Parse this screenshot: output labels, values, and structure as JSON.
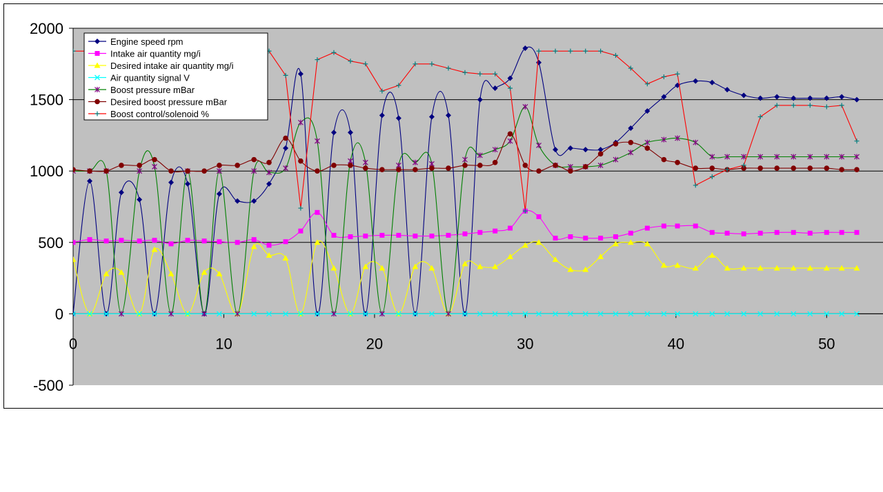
{
  "chart_data": {
    "type": "line",
    "title": "",
    "xlabel": "",
    "ylabel": "",
    "xlim": [
      0,
      52
    ],
    "ylim": [
      -500,
      2000
    ],
    "x_ticks": [
      "0",
      "10",
      "20",
      "30",
      "40",
      "50"
    ],
    "y_ticks": [
      "2000",
      "1500",
      "1000",
      "500",
      "0",
      "-500"
    ],
    "grid": "horizontal",
    "plot_background": "#c0c0c0",
    "legend_position": "top-left",
    "x": [
      0,
      1.1,
      2.2,
      3.2,
      4.4,
      5.4,
      6.5,
      7.6,
      8.7,
      9.7,
      10.9,
      12,
      13,
      14.1,
      15.1,
      16.2,
      17.3,
      18.4,
      19.4,
      20.5,
      21.6,
      22.7,
      23.8,
      24.9,
      26,
      27,
      28,
      29,
      30,
      30.9,
      32,
      33,
      34,
      35,
      36,
      37,
      38.1,
      39.2,
      40.1,
      41.3,
      42.4,
      43.4,
      44.5,
      45.6,
      46.7,
      47.8,
      48.9,
      50,
      51,
      52
    ],
    "series": [
      {
        "name": "Engine speed rpm",
        "color": "#000080",
        "marker": "diamond",
        "values": [
          0,
          930,
          0,
          850,
          800,
          0,
          920,
          910,
          0,
          840,
          790,
          790,
          910,
          1160,
          1680,
          0,
          1270,
          1270,
          0,
          1390,
          1370,
          0,
          1380,
          1390,
          0,
          1500,
          1580,
          1650,
          1860,
          1760,
          1150,
          1160,
          1150,
          1150,
          1200,
          1300,
          1420,
          1520,
          1600,
          1630,
          1620,
          1570,
          1530,
          1510,
          1520,
          1510,
          1510,
          1510,
          1520,
          1500
        ]
      },
      {
        "name": "Intake air quantity mg/i",
        "color": "#ff00ff",
        "marker": "square",
        "values": [
          500,
          520,
          510,
          515,
          510,
          515,
          490,
          515,
          510,
          505,
          500,
          520,
          480,
          505,
          580,
          710,
          550,
          540,
          545,
          550,
          550,
          545,
          545,
          550,
          560,
          570,
          580,
          600,
          720,
          680,
          530,
          540,
          530,
          530,
          540,
          565,
          600,
          615,
          615,
          615,
          570,
          565,
          560,
          565,
          570,
          570,
          565,
          570,
          570,
          570
        ]
      },
      {
        "name": "Desired intake air quantity mg/i",
        "color": "#ffff00",
        "marker": "triangle",
        "values": [
          380,
          0,
          280,
          290,
          0,
          450,
          280,
          0,
          290,
          280,
          0,
          470,
          410,
          390,
          0,
          500,
          320,
          0,
          330,
          320,
          0,
          330,
          320,
          0,
          350,
          330,
          330,
          400,
          480,
          500,
          380,
          310,
          310,
          400,
          490,
          500,
          490,
          340,
          340,
          320,
          410,
          320,
          320,
          320,
          320,
          320,
          320,
          320,
          320,
          320
        ]
      },
      {
        "name": "Air quantity signal V",
        "color": "#00ffff",
        "marker": "x",
        "values": [
          0,
          0,
          0,
          0,
          0,
          0,
          0,
          0,
          0,
          0,
          0,
          0,
          0,
          0,
          0,
          0,
          0,
          0,
          0,
          0,
          0,
          0,
          0,
          0,
          0,
          0,
          0,
          0,
          0,
          0,
          0,
          0,
          0,
          0,
          0,
          0,
          0,
          0,
          0,
          0,
          0,
          0,
          0,
          0,
          0,
          0,
          0,
          0,
          0,
          0
        ]
      },
      {
        "name": "Boost pressure mBar",
        "color": "#008000",
        "marker": "star",
        "values": [
          1000,
          1000,
          1000,
          0,
          1000,
          1030,
          0,
          1000,
          0,
          1000,
          0,
          1000,
          990,
          1020,
          1340,
          1210,
          0,
          1070,
          1060,
          0,
          1040,
          1060,
          1050,
          0,
          1080,
          1110,
          1150,
          1210,
          1450,
          1180,
          1040,
          1030,
          1030,
          1040,
          1080,
          1130,
          1200,
          1220,
          1230,
          1200,
          1100,
          1100,
          1100,
          1100,
          1100,
          1100,
          1100,
          1100,
          1100,
          1100
        ]
      },
      {
        "name": "Desired boost pressure mBar",
        "color": "#800000",
        "marker": "circle",
        "values": [
          1010,
          1000,
          1000,
          1040,
          1040,
          1080,
          1000,
          1000,
          1000,
          1040,
          1040,
          1080,
          1060,
          1230,
          1070,
          1000,
          1040,
          1040,
          1020,
          1010,
          1010,
          1010,
          1020,
          1020,
          1040,
          1040,
          1060,
          1260,
          1040,
          1000,
          1040,
          1000,
          1030,
          1120,
          1190,
          1200,
          1160,
          1080,
          1060,
          1020,
          1020,
          1010,
          1020,
          1020,
          1020,
          1020,
          1020,
          1020,
          1010,
          1010
        ]
      },
      {
        "name": "Boost control/solenoid %",
        "color": "#ff0000",
        "marker": "plus",
        "values": [
          1840,
          1840,
          1840,
          1840,
          1840,
          1840,
          1840,
          1840,
          1840,
          1840,
          1840,
          1840,
          1840,
          1670,
          740,
          1780,
          1830,
          1770,
          1750,
          1560,
          1600,
          1750,
          1750,
          1720,
          1690,
          1680,
          1680,
          1580,
          720,
          1840,
          1840,
          1840,
          1840,
          1840,
          1810,
          1720,
          1610,
          1660,
          1680,
          900,
          960,
          1010,
          1040,
          1380,
          1460,
          1460,
          1460,
          1450,
          1460,
          1210
        ]
      }
    ]
  }
}
